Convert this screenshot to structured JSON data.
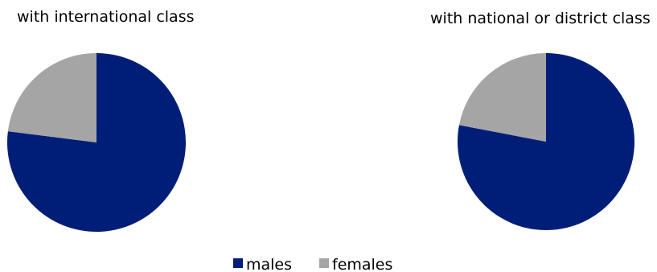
{
  "chart_data": [
    {
      "type": "pie",
      "title": "with international class",
      "labels": [
        "males",
        "females"
      ],
      "values": [
        77,
        23
      ]
    },
    {
      "type": "pie",
      "title": "with national or district class",
      "labels": [
        "males",
        "females"
      ],
      "values": [
        78,
        22
      ]
    }
  ],
  "legend": {
    "placement": "bottom-center",
    "items": [
      {
        "label": "males",
        "color": "#001e78"
      },
      {
        "label": "females",
        "color": "#a5a5a5"
      }
    ]
  },
  "colors": {
    "males": "#001e78",
    "females": "#a5a5a5"
  }
}
